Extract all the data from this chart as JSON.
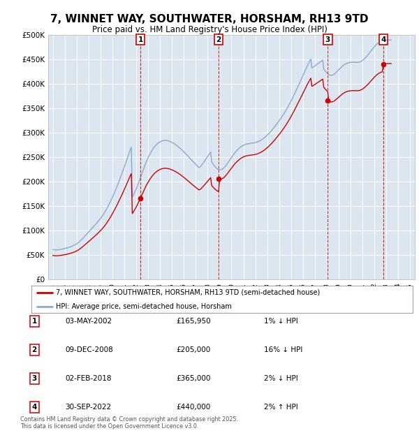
{
  "title": "7, WINNET WAY, SOUTHWATER, HORSHAM, RH13 9TD",
  "subtitle": "Price paid vs. HM Land Registry's House Price Index (HPI)",
  "background_color": "#dce6f0",
  "ylim": [
    0,
    500000
  ],
  "yticks": [
    0,
    50000,
    100000,
    150000,
    200000,
    250000,
    300000,
    350000,
    400000,
    450000,
    500000
  ],
  "ytick_labels": [
    "£0",
    "£50K",
    "£100K",
    "£150K",
    "£200K",
    "£250K",
    "£300K",
    "£350K",
    "£400K",
    "£450K",
    "£500K"
  ],
  "xlim_min": 1994.6,
  "xlim_max": 2025.4,
  "line_color_price": "#cc0000",
  "line_color_hpi": "#88aacc",
  "transactions": [
    {
      "num": 1,
      "date": "03-MAY-2002",
      "price": 165950,
      "pct": "1%",
      "direction": "↓",
      "x_year": 2002.35
    },
    {
      "num": 2,
      "date": "09-DEC-2008",
      "price": 205000,
      "pct": "16%",
      "direction": "↓",
      "x_year": 2008.92
    },
    {
      "num": 3,
      "date": "02-FEB-2018",
      "price": 365000,
      "pct": "2%",
      "direction": "↓",
      "x_year": 2018.09
    },
    {
      "num": 4,
      "date": "30-SEP-2022",
      "price": 440000,
      "pct": "2%",
      "direction": "↑",
      "x_year": 2022.75
    }
  ],
  "legend_line1": "7, WINNET WAY, SOUTHWATER, HORSHAM, RH13 9TD (semi-detached house)",
  "legend_line2": "HPI: Average price, semi-detached house, Horsham",
  "footer": "Contains HM Land Registry data © Crown copyright and database right 2025.\nThis data is licensed under the Open Government Licence v3.0.",
  "hpi_x": [
    1995.0,
    1995.083,
    1995.167,
    1995.25,
    1995.333,
    1995.417,
    1995.5,
    1995.583,
    1995.667,
    1995.75,
    1995.833,
    1995.917,
    1996.0,
    1996.083,
    1996.167,
    1996.25,
    1996.333,
    1996.417,
    1996.5,
    1996.583,
    1996.667,
    1996.75,
    1996.833,
    1996.917,
    1997.0,
    1997.083,
    1997.167,
    1997.25,
    1997.333,
    1997.417,
    1997.5,
    1997.583,
    1997.667,
    1997.75,
    1997.833,
    1997.917,
    1998.0,
    1998.083,
    1998.167,
    1998.25,
    1998.333,
    1998.417,
    1998.5,
    1998.583,
    1998.667,
    1998.75,
    1998.833,
    1998.917,
    1999.0,
    1999.083,
    1999.167,
    1999.25,
    1999.333,
    1999.417,
    1999.5,
    1999.583,
    1999.667,
    1999.75,
    1999.833,
    1999.917,
    2000.0,
    2000.083,
    2000.167,
    2000.25,
    2000.333,
    2000.417,
    2000.5,
    2000.583,
    2000.667,
    2000.75,
    2000.833,
    2000.917,
    2001.0,
    2001.083,
    2001.167,
    2001.25,
    2001.333,
    2001.417,
    2001.5,
    2001.583,
    2001.667,
    2001.75,
    2001.833,
    2001.917,
    2002.0,
    2002.083,
    2002.167,
    2002.25,
    2002.333,
    2002.417,
    2002.5,
    2002.583,
    2002.667,
    2002.75,
    2002.833,
    2002.917,
    2003.0,
    2003.083,
    2003.167,
    2003.25,
    2003.333,
    2003.417,
    2003.5,
    2003.583,
    2003.667,
    2003.75,
    2003.833,
    2003.917,
    2004.0,
    2004.083,
    2004.167,
    2004.25,
    2004.333,
    2004.417,
    2004.5,
    2004.583,
    2004.667,
    2004.75,
    2004.833,
    2004.917,
    2005.0,
    2005.083,
    2005.167,
    2005.25,
    2005.333,
    2005.417,
    2005.5,
    2005.583,
    2005.667,
    2005.75,
    2005.833,
    2005.917,
    2006.0,
    2006.083,
    2006.167,
    2006.25,
    2006.333,
    2006.417,
    2006.5,
    2006.583,
    2006.667,
    2006.75,
    2006.833,
    2006.917,
    2007.0,
    2007.083,
    2007.167,
    2007.25,
    2007.333,
    2007.417,
    2007.5,
    2007.583,
    2007.667,
    2007.75,
    2007.833,
    2007.917,
    2008.0,
    2008.083,
    2008.167,
    2008.25,
    2008.333,
    2008.417,
    2008.5,
    2008.583,
    2008.667,
    2008.75,
    2008.833,
    2008.917,
    2009.0,
    2009.083,
    2009.167,
    2009.25,
    2009.333,
    2009.417,
    2009.5,
    2009.583,
    2009.667,
    2009.75,
    2009.833,
    2009.917,
    2010.0,
    2010.083,
    2010.167,
    2010.25,
    2010.333,
    2010.417,
    2010.5,
    2010.583,
    2010.667,
    2010.75,
    2010.833,
    2010.917,
    2011.0,
    2011.083,
    2011.167,
    2011.25,
    2011.333,
    2011.417,
    2011.5,
    2011.583,
    2011.667,
    2011.75,
    2011.833,
    2011.917,
    2012.0,
    2012.083,
    2012.167,
    2012.25,
    2012.333,
    2012.417,
    2012.5,
    2012.583,
    2012.667,
    2012.75,
    2012.833,
    2012.917,
    2013.0,
    2013.083,
    2013.167,
    2013.25,
    2013.333,
    2013.417,
    2013.5,
    2013.583,
    2013.667,
    2013.75,
    2013.833,
    2013.917,
    2014.0,
    2014.083,
    2014.167,
    2014.25,
    2014.333,
    2014.417,
    2014.5,
    2014.583,
    2014.667,
    2014.75,
    2014.833,
    2014.917,
    2015.0,
    2015.083,
    2015.167,
    2015.25,
    2015.333,
    2015.417,
    2015.5,
    2015.583,
    2015.667,
    2015.75,
    2015.833,
    2015.917,
    2016.0,
    2016.083,
    2016.167,
    2016.25,
    2016.333,
    2016.417,
    2016.5,
    2016.583,
    2016.667,
    2016.75,
    2016.833,
    2016.917,
    2017.0,
    2017.083,
    2017.167,
    2017.25,
    2017.333,
    2017.417,
    2017.5,
    2017.583,
    2017.667,
    2017.75,
    2017.833,
    2017.917,
    2018.0,
    2018.083,
    2018.167,
    2018.25,
    2018.333,
    2018.417,
    2018.5,
    2018.583,
    2018.667,
    2018.75,
    2018.833,
    2018.917,
    2019.0,
    2019.083,
    2019.167,
    2019.25,
    2019.333,
    2019.417,
    2019.5,
    2019.583,
    2019.667,
    2019.75,
    2019.833,
    2019.917,
    2020.0,
    2020.083,
    2020.167,
    2020.25,
    2020.333,
    2020.417,
    2020.5,
    2020.583,
    2020.667,
    2020.75,
    2020.833,
    2020.917,
    2021.0,
    2021.083,
    2021.167,
    2021.25,
    2021.333,
    2021.417,
    2021.5,
    2021.583,
    2021.667,
    2021.75,
    2021.833,
    2021.917,
    2022.0,
    2022.083,
    2022.167,
    2022.25,
    2022.333,
    2022.417,
    2022.5,
    2022.583,
    2022.667,
    2022.75,
    2022.833,
    2022.917,
    2023.0,
    2023.083,
    2023.167,
    2023.25,
    2023.333,
    2023.417,
    2023.5,
    2023.583,
    2023.667,
    2023.75,
    2023.833,
    2023.917,
    2024.0,
    2024.083,
    2024.167,
    2024.25,
    2024.333,
    2024.417,
    2024.5,
    2024.583,
    2024.667,
    2024.75,
    2024.833,
    2024.917,
    2025.0,
    2025.083
  ],
  "hpi_y": [
    61000,
    60500,
    60200,
    60000,
    60100,
    60300,
    60500,
    60800,
    61200,
    61600,
    62000,
    62500,
    63000,
    63500,
    64000,
    64600,
    65200,
    65900,
    66700,
    67500,
    68400,
    69300,
    70300,
    71400,
    72500,
    74000,
    75600,
    77300,
    79200,
    81200,
    83300,
    85500,
    87700,
    90000,
    92200,
    94500,
    96800,
    99000,
    101200,
    103400,
    105600,
    107800,
    110000,
    112300,
    114600,
    117000,
    119500,
    122000,
    124500,
    127200,
    130000,
    133000,
    136200,
    139600,
    143200,
    147000,
    151000,
    155000,
    159200,
    163500,
    168000,
    172500,
    177200,
    182000,
    187000,
    192000,
    197200,
    202500,
    207800,
    213200,
    218700,
    224300,
    229900,
    235600,
    241400,
    247300,
    253300,
    259400,
    265500,
    270000,
    168000,
    172000,
    176000,
    180500,
    185000,
    190000,
    195500,
    201000,
    206500,
    212000,
    217500,
    223000,
    228500,
    234000,
    239500,
    244000,
    248500,
    252800,
    256800,
    260500,
    263900,
    267000,
    269800,
    272300,
    274500,
    276500,
    278200,
    279700,
    281000,
    282000,
    282800,
    283400,
    283800,
    284000,
    283900,
    283600,
    283100,
    282500,
    281700,
    280800,
    279800,
    278700,
    277500,
    276200,
    274800,
    273300,
    271700,
    270000,
    268200,
    266400,
    264500,
    262500,
    260500,
    258400,
    256300,
    254200,
    252000,
    249800,
    247600,
    245400,
    243300,
    241100,
    239000,
    236900,
    234800,
    232700,
    230700,
    228800,
    229000,
    231000,
    233500,
    236200,
    239000,
    242000,
    245000,
    248000,
    251000,
    254000,
    257000,
    260000,
    240000,
    237000,
    234000,
    231500,
    229000,
    227000,
    225500,
    224500,
    224000,
    224000,
    224500,
    225500,
    227000,
    229000,
    231500,
    234000,
    237000,
    240000,
    243000,
    246000,
    249000,
    252000,
    254800,
    257500,
    260000,
    262300,
    264500,
    266500,
    268300,
    270000,
    271500,
    272800,
    273900,
    274800,
    275600,
    276200,
    276700,
    277100,
    277400,
    277700,
    277900,
    278200,
    278500,
    278900,
    279400,
    280000,
    280700,
    281500,
    282400,
    283500,
    284700,
    286000,
    287500,
    289100,
    290800,
    292600,
    294500,
    296500,
    298600,
    300800,
    303100,
    305500,
    308000,
    310500,
    313100,
    315700,
    318400,
    321100,
    323900,
    326800,
    329700,
    332700,
    335800,
    339000,
    342300,
    345700,
    349200,
    352800,
    356500,
    360300,
    364200,
    368200,
    372300,
    376500,
    380800,
    385100,
    389500,
    393900,
    398400,
    402800,
    407200,
    411700,
    416200,
    420700,
    425200,
    429700,
    434100,
    438400,
    442500,
    446400,
    450000,
    432000,
    433000,
    434500,
    436000,
    437500,
    439000,
    440500,
    442000,
    443500,
    445000,
    446500,
    448000,
    430000,
    427000,
    424500,
    422000,
    420000,
    418500,
    417500,
    417000,
    417000,
    417500,
    418500,
    420000,
    422000,
    424000,
    426000,
    428000,
    430000,
    432000,
    434000,
    436000,
    437500,
    439000,
    440000,
    441000,
    441800,
    442500,
    443000,
    443300,
    443500,
    443600,
    443600,
    443500,
    443400,
    443300,
    443300,
    443500,
    444000,
    444800,
    445800,
    447100,
    448700,
    450500,
    452500,
    454700,
    457100,
    459600,
    462200,
    464900,
    467600,
    470300,
    472900,
    475400,
    477700,
    479800,
    481700,
    483400,
    484800,
    486000,
    487000,
    487700,
    488200,
    488600,
    488900,
    489100,
    489200,
    489200,
    489200,
    489100,
    489100
  ]
}
